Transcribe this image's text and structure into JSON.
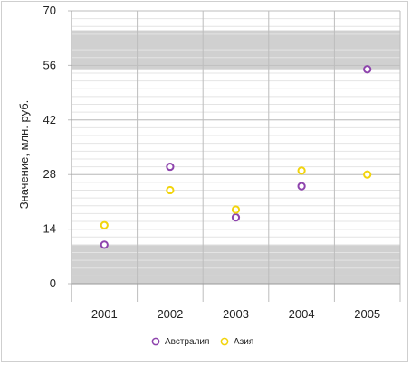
{
  "chart_data": {
    "type": "scatter",
    "title": "",
    "xlabel": "",
    "ylabel": "Значение, млн. руб.",
    "categories": [
      "2001",
      "2002",
      "2003",
      "2004",
      "2005"
    ],
    "ylim": [
      0,
      70
    ],
    "yticks": [
      "0",
      "14",
      "28",
      "42",
      "56",
      "70"
    ],
    "grid": true,
    "legend_position": "bottom",
    "bands": [
      {
        "from": 0,
        "to": 10,
        "color": "#d0d0d0"
      },
      {
        "from": 55,
        "to": 65,
        "color": "#d0d0d0"
      }
    ],
    "series": [
      {
        "name": "Австралия",
        "color": "#8e44ad",
        "values": [
          10,
          30,
          17,
          25,
          55
        ]
      },
      {
        "name": "Азия",
        "color": "#f2d40c",
        "values": [
          15,
          24,
          19,
          29,
          28
        ]
      }
    ]
  }
}
